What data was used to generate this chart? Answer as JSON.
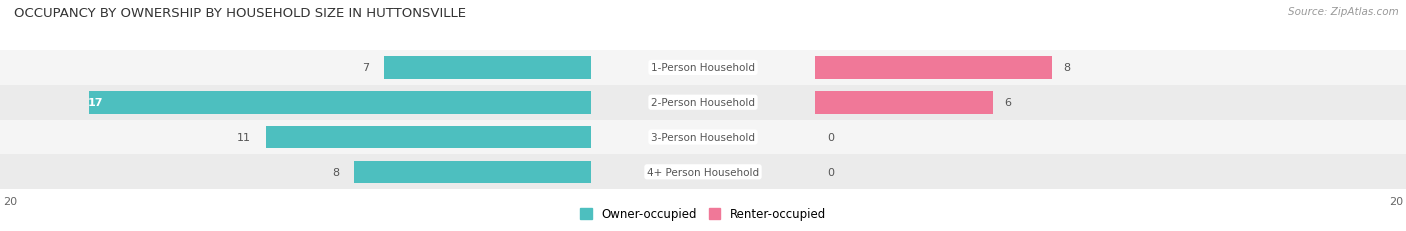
{
  "title": "OCCUPANCY BY OWNERSHIP BY HOUSEHOLD SIZE IN HUTTONSVILLE",
  "source": "Source: ZipAtlas.com",
  "categories": [
    "1-Person Household",
    "2-Person Household",
    "3-Person Household",
    "4+ Person Household"
  ],
  "owner_values": [
    7,
    17,
    11,
    8
  ],
  "renter_values": [
    8,
    6,
    0,
    0
  ],
  "owner_color": "#4dbfbf",
  "renter_color": "#f07898",
  "renter_color_light": "#f8afc4",
  "row_bg_light": "#f5f5f5",
  "row_bg_dark": "#ebebeb",
  "axis_max": 20,
  "legend_owner": "Owner-occupied",
  "legend_renter": "Renter-occupied"
}
